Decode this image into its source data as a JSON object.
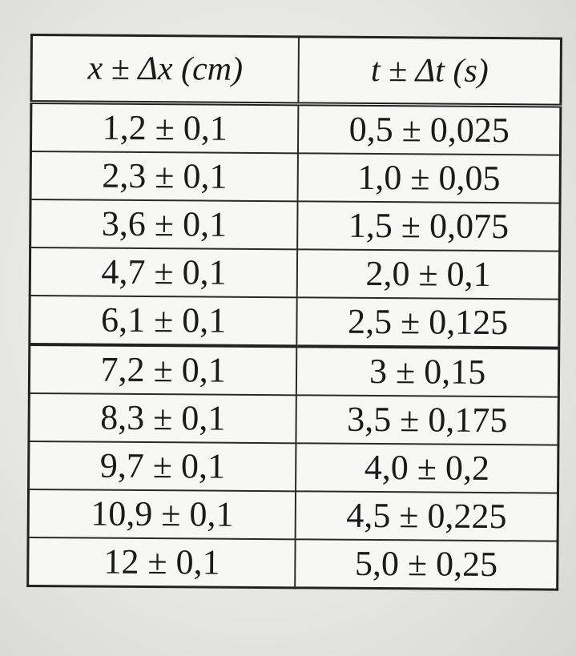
{
  "table": {
    "headers": [
      "x ± Δx  (cm)",
      "t ± Δt  (s)"
    ],
    "rows": [
      [
        "1,2 ± 0,1",
        "0,5 ± 0,025"
      ],
      [
        "2,3 ± 0,1",
        "1,0 ± 0,05"
      ],
      [
        "3,6 ± 0,1",
        "1,5 ± 0,075"
      ],
      [
        "4,7 ± 0,1",
        "2,0 ± 0,1"
      ],
      [
        "6,1 ± 0,1",
        "2,5 ± 0,125"
      ],
      [
        "7,2 ± 0,1",
        "3 ± 0,15"
      ],
      [
        "8,3 ± 0,1",
        "3,5 ± 0,175"
      ],
      [
        "9,7 ± 0,1",
        "4,0 ± 0,2"
      ],
      [
        "10,9 ± 0,1",
        "4,5 ± 0,225"
      ],
      [
        "12 ± 0,1",
        "5,0 ± 0,25"
      ]
    ]
  }
}
